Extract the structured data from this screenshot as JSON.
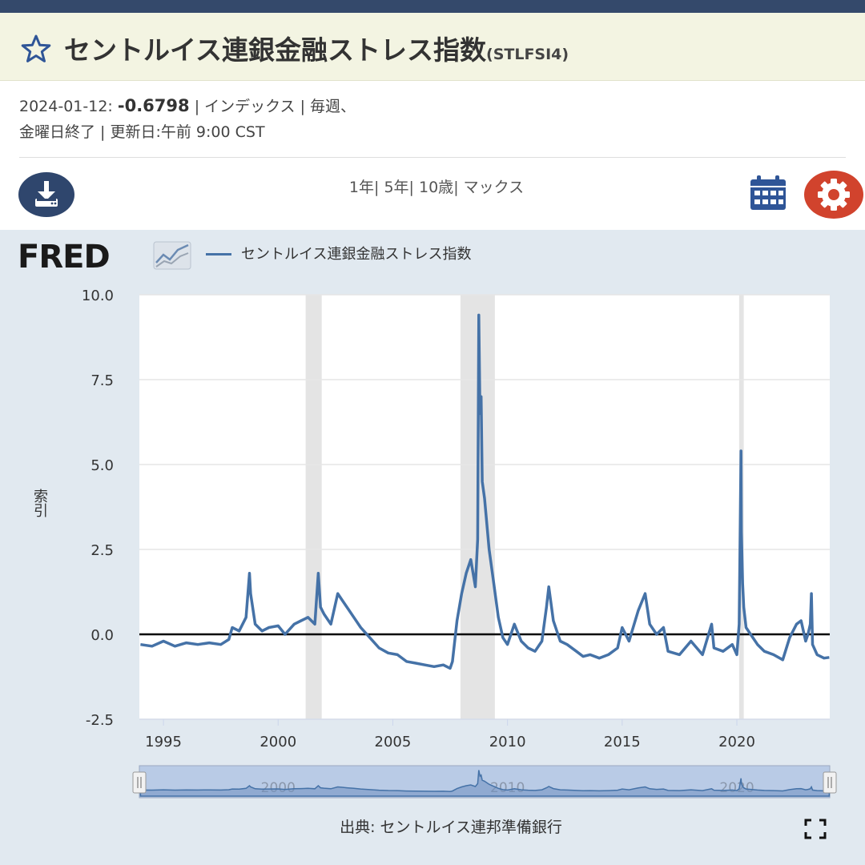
{
  "colors": {
    "accent": "#34496b",
    "series": "#4572a7",
    "recession": "#e4e4e4",
    "gear": "#d1432d",
    "download": "#2f466d",
    "panel": "#e1e9f0"
  },
  "header": {
    "title": "セントルイス連銀金融ストレス指数",
    "series_id": "(STLFSI4)",
    "icon": "star-icon"
  },
  "meta": {
    "date": "2024-01-12:",
    "value": "-0.6798",
    "units": "| インデックス | 毎週、",
    "frequency": "金曜日終了 | 更新日:",
    "updated": "午前 9:00 CST"
  },
  "toolbar": {
    "download_icon": "download-icon",
    "ranges": [
      "1年",
      "5年",
      "10歳",
      "マックス"
    ],
    "calendar_icon": "calendar-icon",
    "settings_icon": "gear-icon"
  },
  "logo": {
    "text": "FRED"
  },
  "chart": {
    "legend_label": "セントルイス連銀金融ストレス指数",
    "source": "出典: セントルイス連邦準備銀行"
  },
  "chart_data": {
    "type": "line",
    "xlabel": "",
    "ylabel": "索引",
    "xlim": [
      1993.95,
      2024.05
    ],
    "ylim": [
      -2.5,
      10.0
    ],
    "yticks": [
      -2.5,
      0.0,
      2.5,
      5.0,
      7.5,
      10.0
    ],
    "ytick_labels": [
      "-2.5",
      "0.0",
      "2.5",
      "5.0",
      "7.5",
      "10.0"
    ],
    "xticks": [
      1995,
      2000,
      2005,
      2010,
      2015,
      2020
    ],
    "xtick_labels": [
      "1995",
      "2000",
      "2005",
      "2010",
      "2015",
      "2020"
    ],
    "navigator_labels": [
      {
        "year": 2000,
        "label": "2000"
      },
      {
        "year": 2010,
        "label": "2010"
      },
      {
        "year": 2020,
        "label": "2020"
      }
    ],
    "grid": true,
    "recessions": [
      [
        2001.2,
        2001.9
      ],
      [
        2007.95,
        2009.45
      ],
      [
        2020.1,
        2020.3
      ]
    ],
    "series": [
      {
        "name": "セントルイス連銀金融ストレス指数",
        "x": [
          1994.0,
          1994.5,
          1995.0,
          1995.5,
          1996.0,
          1996.5,
          1997.0,
          1997.5,
          1997.85,
          1998.0,
          1998.3,
          1998.6,
          1998.75,
          1998.8,
          1999.0,
          1999.3,
          1999.6,
          2000.0,
          2000.3,
          2000.7,
          2001.0,
          2001.3,
          2001.6,
          2001.75,
          2001.85,
          2002.0,
          2002.3,
          2002.6,
          2002.8,
          2003.0,
          2003.3,
          2003.6,
          2004.0,
          2004.4,
          2004.8,
          2005.2,
          2005.6,
          2006.0,
          2006.4,
          2006.8,
          2007.2,
          2007.5,
          2007.6,
          2007.8,
          2008.0,
          2008.2,
          2008.4,
          2008.6,
          2008.7,
          2008.75,
          2008.8,
          2008.85,
          2008.9,
          2009.0,
          2009.2,
          2009.4,
          2009.6,
          2009.8,
          2010.0,
          2010.3,
          2010.6,
          2010.9,
          2011.2,
          2011.5,
          2011.7,
          2011.8,
          2012.0,
          2012.3,
          2012.6,
          2013.0,
          2013.3,
          2013.6,
          2014.0,
          2014.4,
          2014.8,
          2015.0,
          2015.3,
          2015.7,
          2016.0,
          2016.2,
          2016.5,
          2016.8,
          2017.0,
          2017.5,
          2018.0,
          2018.5,
          2018.9,
          2019.0,
          2019.4,
          2019.8,
          2020.0,
          2020.1,
          2020.18,
          2020.2,
          2020.25,
          2020.3,
          2020.4,
          2020.6,
          2020.9,
          2021.2,
          2021.6,
          2022.0,
          2022.3,
          2022.6,
          2022.8,
          2023.0,
          2023.1,
          2023.2,
          2023.25,
          2023.3,
          2023.5,
          2023.8,
          2024.03
        ],
        "y": [
          -0.3,
          -0.35,
          -0.2,
          -0.35,
          -0.25,
          -0.3,
          -0.25,
          -0.3,
          -0.15,
          0.2,
          0.1,
          0.5,
          1.8,
          1.2,
          0.3,
          0.1,
          0.2,
          0.25,
          0.0,
          0.3,
          0.4,
          0.5,
          0.3,
          1.8,
          0.8,
          0.6,
          0.3,
          1.2,
          1.0,
          0.8,
          0.5,
          0.2,
          -0.1,
          -0.4,
          -0.55,
          -0.6,
          -0.8,
          -0.85,
          -0.9,
          -0.95,
          -0.9,
          -1.0,
          -0.8,
          0.4,
          1.2,
          1.8,
          2.2,
          1.4,
          2.8,
          9.4,
          6.5,
          7.0,
          4.5,
          4.0,
          2.5,
          1.5,
          0.5,
          -0.1,
          -0.3,
          0.3,
          -0.2,
          -0.4,
          -0.5,
          -0.2,
          0.8,
          1.4,
          0.4,
          -0.2,
          -0.3,
          -0.5,
          -0.65,
          -0.6,
          -0.7,
          -0.6,
          -0.4,
          0.2,
          -0.2,
          0.7,
          1.2,
          0.3,
          0.0,
          0.2,
          -0.5,
          -0.6,
          -0.2,
          -0.6,
          0.3,
          -0.4,
          -0.5,
          -0.3,
          -0.6,
          0.3,
          5.4,
          3.0,
          1.5,
          0.8,
          0.2,
          0.0,
          -0.3,
          -0.5,
          -0.6,
          -0.75,
          -0.1,
          0.3,
          0.4,
          -0.2,
          0.0,
          0.3,
          1.2,
          -0.3,
          -0.6,
          -0.7,
          -0.68
        ]
      }
    ]
  }
}
